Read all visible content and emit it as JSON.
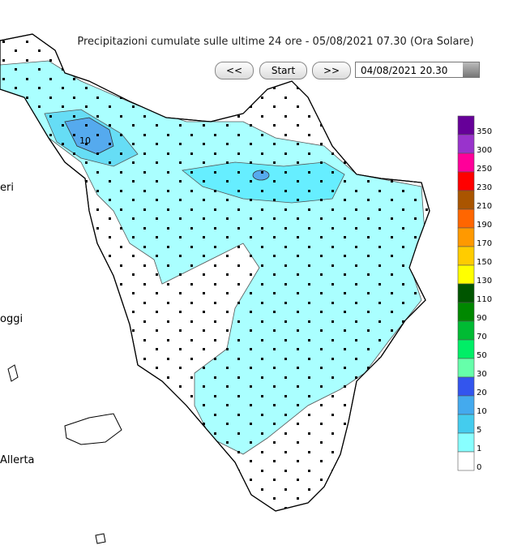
{
  "header": {
    "title": "Precipitazioni cumulate sulle ultime 24 ore - 05/08/2021 07.30 (Ora Solare)"
  },
  "controls": {
    "prev": "<<",
    "start": "Start",
    "next": ">>",
    "date": "04/08/2021 20.30"
  },
  "side_texts": [
    "eri",
    "oggi",
    "Allerta"
  ],
  "map": {
    "contour_label": "10"
  },
  "legend": {
    "items": [
      {
        "label": 350,
        "color": "#660099"
      },
      {
        "label": 300,
        "color": "#9933cc"
      },
      {
        "label": 250,
        "color": "#ff0099"
      },
      {
        "label": 230,
        "color": "#ff0000"
      },
      {
        "label": 210,
        "color": "#aa5500"
      },
      {
        "label": 190,
        "color": "#ff6600"
      },
      {
        "label": 170,
        "color": "#ff9900"
      },
      {
        "label": 150,
        "color": "#ffcc00"
      },
      {
        "label": 130,
        "color": "#ffff00"
      },
      {
        "label": 110,
        "color": "#005500"
      },
      {
        "label": 90,
        "color": "#008800"
      },
      {
        "label": 70,
        "color": "#00bb33"
      },
      {
        "label": 50,
        "color": "#00ee66"
      },
      {
        "label": 30,
        "color": "#66ffaa"
      },
      {
        "label": 20,
        "color": "#3355ee"
      },
      {
        "label": 10,
        "color": "#44aaee"
      },
      {
        "label": 5,
        "color": "#44ccee"
      },
      {
        "label": 1,
        "color": "#88ffff"
      },
      {
        "label": 0,
        "color": "#ffffff"
      }
    ]
  }
}
